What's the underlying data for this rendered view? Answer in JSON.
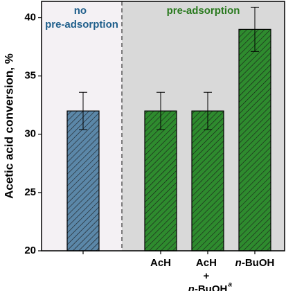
{
  "chart_data": {
    "type": "bar",
    "ylabel": "Acetic acid conversion, %",
    "categories": [
      null,
      "AcH",
      "AcH + n-BuOH",
      "n-BuOH"
    ],
    "category_superscripts": [
      null,
      null,
      "a",
      null
    ],
    "values": [
      32,
      32,
      32,
      39
    ],
    "errors": [
      1.6,
      1.6,
      1.6,
      1.9
    ],
    "colors": [
      "#5b87a8",
      "#2e8b2e",
      "#2e8b2e",
      "#2e8b2e"
    ],
    "ylim": [
      20,
      41.4
    ],
    "yticks": [
      20,
      25,
      30,
      35,
      40
    ],
    "annotations": [
      {
        "text": "no pre-adsorption",
        "color": "#1f5f8b"
      },
      {
        "text": "pre-adsorption",
        "color": "#2a7a1f"
      }
    ]
  }
}
